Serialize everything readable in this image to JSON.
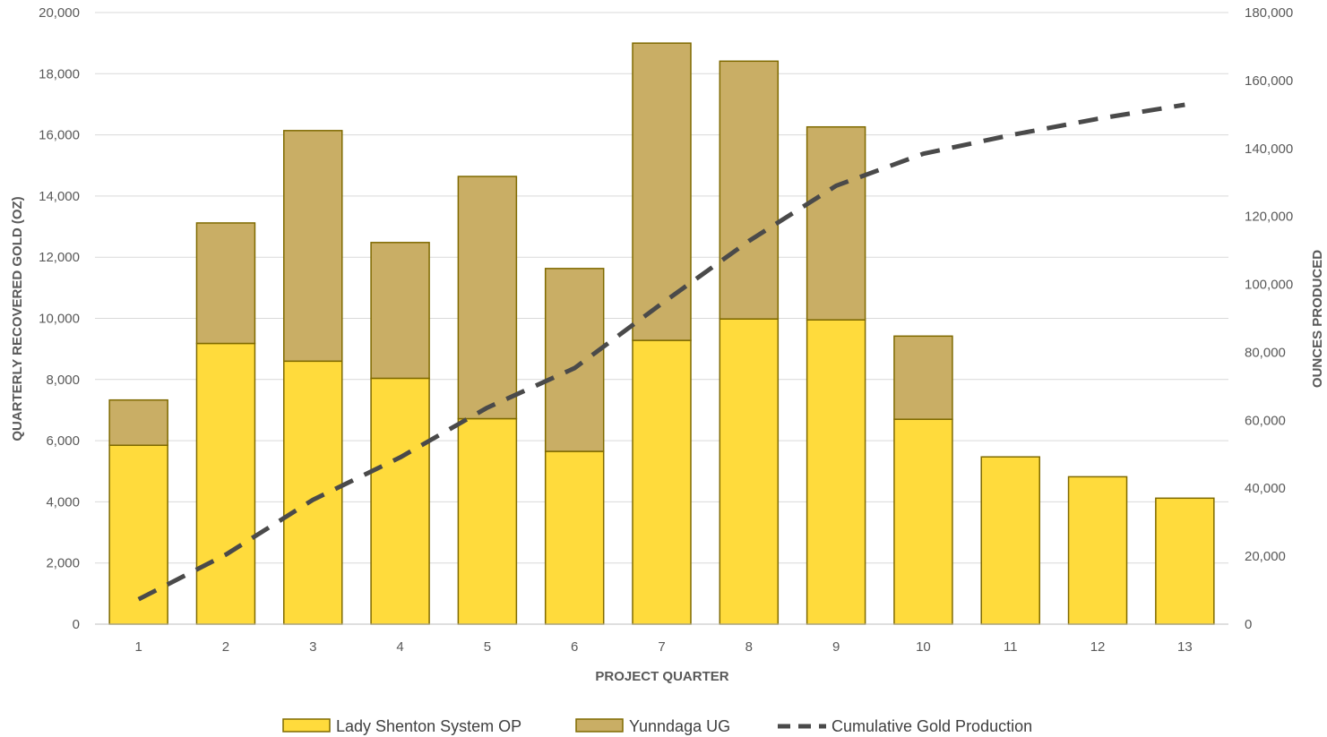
{
  "chart_data": {
    "type": "bar",
    "stacked": true,
    "categories": [
      "1",
      "2",
      "3",
      "4",
      "5",
      "6",
      "7",
      "8",
      "9",
      "10",
      "11",
      "12",
      "13"
    ],
    "series": [
      {
        "name": "Lady Shenton System OP",
        "axis": "left",
        "color": "#FFDB3C",
        "edge": "#7F6A00",
        "values": [
          5850,
          9180,
          8600,
          8040,
          6720,
          5650,
          9280,
          9980,
          9950,
          6700,
          5470,
          4820,
          4120
        ]
      },
      {
        "name": "Yunndaga UG",
        "axis": "left",
        "color": "#C9AE65",
        "edge": "#7F6A00",
        "values": [
          1480,
          3940,
          7540,
          4440,
          7920,
          5980,
          9720,
          8430,
          6310,
          2720,
          0,
          0,
          0
        ]
      },
      {
        "name": "Cumulative Gold Production",
        "type": "line",
        "style": "dashed",
        "axis": "right",
        "color": "#4A4A4A",
        "values": [
          7330,
          20450,
          36600,
          49080,
          63720,
          75350,
          94350,
          112760,
          129020,
          138440,
          143910,
          148730,
          152850
        ]
      }
    ],
    "xlabel": "PROJECT QUARTER",
    "ylabel": "QUARTERLY RECOVERED GOLD (OZ)",
    "y2label": "OUNCES PRODUCED",
    "ylim": [
      0,
      20000
    ],
    "y2lim": [
      0,
      180000
    ],
    "yticks": [
      "0",
      "2,000",
      "4,000",
      "6,000",
      "8,000",
      "10,000",
      "12,000",
      "14,000",
      "16,000",
      "18,000",
      "20,000"
    ],
    "y2ticks": [
      "0",
      "20,000",
      "40,000",
      "60,000",
      "80,000",
      "100,000",
      "120,000",
      "140,000",
      "160,000",
      "180,000"
    ],
    "grid": true,
    "legend": "bottom"
  }
}
